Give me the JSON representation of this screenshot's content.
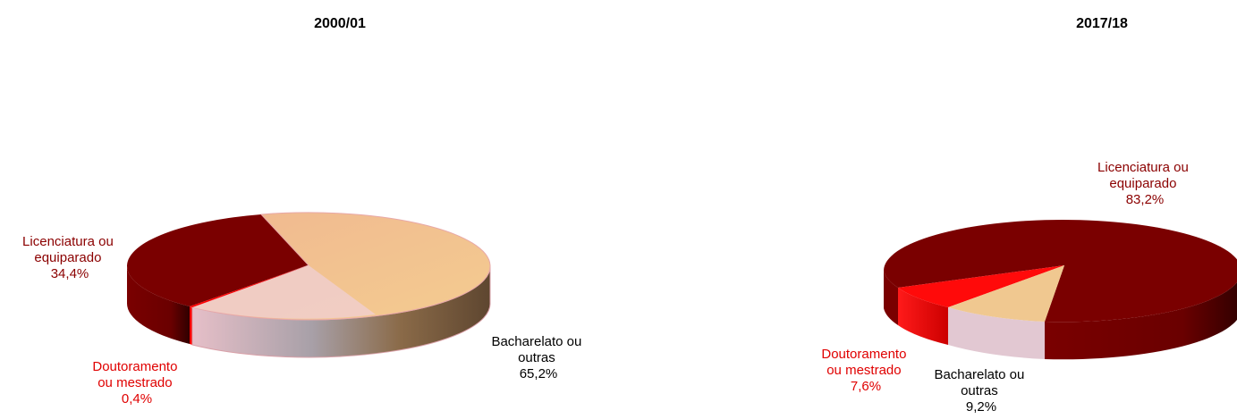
{
  "chart_data": [
    {
      "type": "pie",
      "title": "2000/01",
      "slices": [
        {
          "label_lines": [
            "Licenciatura ou",
            "equiparado"
          ],
          "value_label": "34,4%",
          "value": 34.4,
          "color": "#7a0000",
          "label_color": "#8b0000"
        },
        {
          "label_lines": [
            "Bacharelato ou",
            "outras"
          ],
          "value_label": "65,2%",
          "value": 65.2,
          "color": "#e8b88a",
          "label_color": "#000000"
        },
        {
          "label_lines": [
            "Doutoramento",
            "ou mestrado"
          ],
          "value_label": "0,4%",
          "value": 0.4,
          "color": "#ff0000",
          "label_color": "#e00000"
        }
      ]
    },
    {
      "type": "pie",
      "title": "2017/18",
      "slices": [
        {
          "label_lines": [
            "Licenciatura ou",
            "equiparado"
          ],
          "value_label": "83,2%",
          "value": 83.2,
          "color": "#7a0000",
          "label_color": "#8b0000"
        },
        {
          "label_lines": [
            "Bacharelato ou",
            "outras"
          ],
          "value_label": "9,2%",
          "value": 9.2,
          "color": "#e8b88a",
          "label_color": "#000000"
        },
        {
          "label_lines": [
            "Doutoramento",
            "ou mestrado"
          ],
          "value_label": "7,6%",
          "value": 7.6,
          "color": "#ff0000",
          "label_color": "#e00000"
        }
      ]
    }
  ]
}
